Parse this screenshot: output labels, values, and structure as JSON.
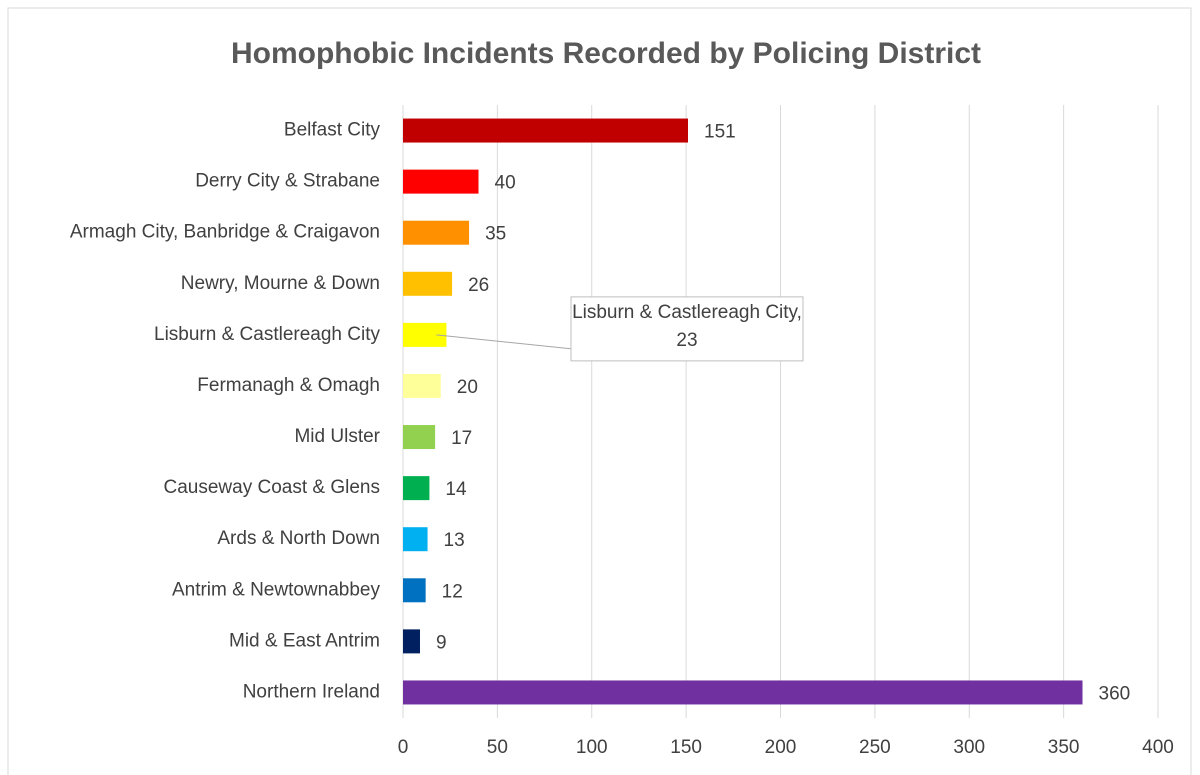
{
  "chart_data": {
    "type": "hbar",
    "title": "Homophobic Incidents Recorded by Policing District",
    "categories": [
      "Belfast City",
      "Derry City & Strabane",
      "Armagh City, Banbridge & Craigavon",
      "Newry, Mourne & Down",
      "Lisburn & Castlereagh City",
      "Fermanagh & Omagh",
      "Mid Ulster",
      "Causeway Coast & Glens",
      "Ards & North Down",
      "Antrim & Newtownabbey",
      "Mid & East Antrim",
      "Northern Ireland"
    ],
    "values": [
      151,
      40,
      35,
      26,
      23,
      20,
      17,
      14,
      13,
      12,
      9,
      360
    ],
    "value_labels": [
      "151",
      "40",
      "35",
      "26",
      "Lisburn & Castlereagh City, 23",
      "20",
      "17",
      "14",
      "13",
      "12",
      "9",
      "360"
    ],
    "colors": [
      "#C00000",
      "#FF0000",
      "#FF9000",
      "#FFC000",
      "#FFFF00",
      "#FFFF99",
      "#92D050",
      "#00B050",
      "#00B0F0",
      "#0070C0",
      "#002060",
      "#7030A0"
    ],
    "xlim": [
      0,
      400
    ],
    "xticks": [
      0,
      50,
      100,
      150,
      200,
      250,
      300,
      350,
      400
    ],
    "grid": true
  }
}
